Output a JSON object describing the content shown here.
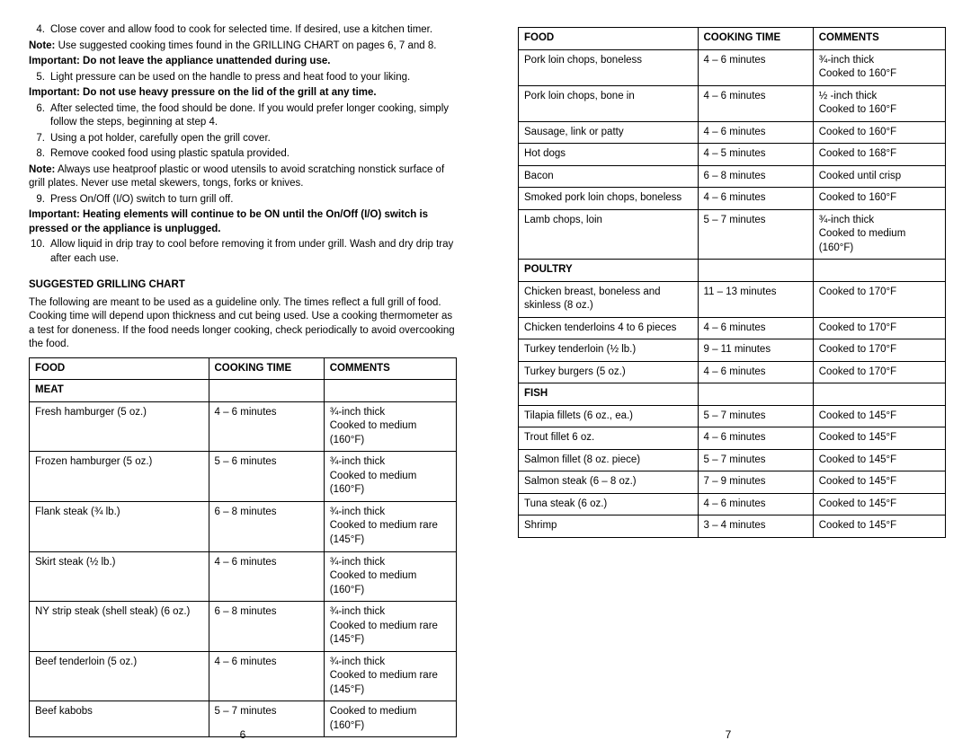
{
  "left": {
    "list1": [
      {
        "n": "4.",
        "t": "Close cover and allow food to cook for selected time. If desired, use a kitchen timer."
      }
    ],
    "note1_label": "Note:",
    "note1_text": " Use suggested cooking times found in the GRILLING CHART on pages 6, 7 and 8.",
    "imp1": "Important:  Do not leave the appliance unattended during use.",
    "list2": [
      {
        "n": "5.",
        "t": "Light pressure can be used on the handle to press and heat food to your liking."
      }
    ],
    "imp2": "Important: Do not use heavy pressure on the lid of the grill at any time.",
    "list3": [
      {
        "n": "6.",
        "t": "After selected time, the food should be done. If you would prefer longer cooking, simply follow the steps, beginning at step 4."
      },
      {
        "n": "7.",
        "t": "Using a pot holder, carefully open the grill cover."
      },
      {
        "n": "8.",
        "t": "Remove cooked food using plastic spatula provided."
      }
    ],
    "note2_label": "Note:",
    "note2_text": " Always use heatproof plastic or wood utensils to avoid scratching nonstick surface of grill plates. Never use metal skewers, tongs, forks or knives.",
    "list4": [
      {
        "n": "9.",
        "t": "Press On/Off (I/O) switch to turn grill off."
      }
    ],
    "imp3": "Important: Heating elements will continue to be ON until the On/Off (I/O) switch is pressed or the appliance is unplugged.",
    "list5": [
      {
        "n": "10.",
        "t": "Allow liquid in drip tray to cool before removing it from under grill. Wash and dry drip tray after each use."
      }
    ],
    "heading": "SUGGESTED GRILLING CHART",
    "intro": "The following are meant to be used as a guideline only. The times reflect a full grill of food. Cooking time will depend upon thickness and cut being used.  Use a cooking thermometer as a test for doneness. If the food needs longer cooking, check periodically to avoid overcooking the food.",
    "table": {
      "headers": [
        "Food",
        "Cooking Time",
        "Comments"
      ],
      "rows": [
        {
          "type": "sub",
          "cells": [
            "Meat",
            "",
            ""
          ]
        },
        {
          "type": "row",
          "cells": [
            "Fresh hamburger (5 oz.)",
            "4 – 6 minutes",
            "¾-inch thick\nCooked to medium (160°F)"
          ]
        },
        {
          "type": "row",
          "cells": [
            "Frozen hamburger (5 oz.)",
            "5 – 6 minutes",
            "¾-inch thick\nCooked to medium (160°F)"
          ]
        },
        {
          "type": "row",
          "cells": [
            "Flank steak (¾ lb.)",
            "6 – 8 minutes",
            "¾-inch thick\nCooked to medium rare (145°F)"
          ]
        },
        {
          "type": "row",
          "cells": [
            "Skirt steak (½ lb.)",
            "4 – 6 minutes",
            "¾-inch thick\nCooked to medium  (160°F)"
          ]
        },
        {
          "type": "row",
          "cells": [
            "NY strip steak (shell steak) (6 oz.)",
            "6 – 8 minutes",
            "¾-inch thick\nCooked to medium rare (145°F)"
          ]
        },
        {
          "type": "row",
          "cells": [
            "Beef tenderloin (5 oz.)",
            "4 – 6 minutes",
            "¾-inch thick\nCooked to medium rare (145°F)"
          ]
        },
        {
          "type": "row",
          "cells": [
            "Beef kabobs",
            "5 – 7 minutes",
            "Cooked to medium (160°F)"
          ]
        }
      ]
    },
    "pagenum": "6"
  },
  "right": {
    "table": {
      "headers": [
        "Food",
        "Cooking Time",
        "Comments"
      ],
      "rows": [
        {
          "type": "row",
          "cells": [
            "Pork loin chops, boneless",
            "4 – 6 minutes",
            "¾-inch thick\nCooked to 160°F"
          ]
        },
        {
          "type": "row",
          "cells": [
            "Pork loin chops, bone in",
            "4 – 6 minutes",
            "½ -inch thick\nCooked to 160°F"
          ]
        },
        {
          "type": "row",
          "cells": [
            "Sausage, link or patty",
            "4 – 6 minutes",
            "Cooked to 160°F"
          ]
        },
        {
          "type": "row",
          "cells": [
            "Hot dogs",
            "4 – 5 minutes",
            "Cooked to 168°F"
          ]
        },
        {
          "type": "row",
          "cells": [
            "Bacon",
            "6 – 8 minutes",
            "Cooked until crisp"
          ]
        },
        {
          "type": "row",
          "cells": [
            "Smoked pork loin chops, boneless",
            "4 – 6 minutes",
            "Cooked to 160°F"
          ]
        },
        {
          "type": "row",
          "cells": [
            "Lamb chops, loin",
            "5 – 7 minutes",
            "¾-inch thick\nCooked to medium (160°F)"
          ]
        },
        {
          "type": "sub",
          "cells": [
            "Poultry",
            "",
            ""
          ]
        },
        {
          "type": "row",
          "cells": [
            "Chicken breast, boneless and skinless (8 oz.)",
            "11 – 13 minutes",
            "Cooked to 170°F"
          ]
        },
        {
          "type": "row",
          "cells": [
            "Chicken tenderloins 4 to 6 pieces",
            "4 – 6 minutes",
            "Cooked to 170°F"
          ]
        },
        {
          "type": "row",
          "cells": [
            "Turkey tenderloin (½ lb.)",
            "9 – 11 minutes",
            "Cooked to 170°F"
          ]
        },
        {
          "type": "row",
          "cells": [
            "Turkey burgers (5 oz.)",
            "4 – 6 minutes",
            "Cooked to 170°F"
          ]
        },
        {
          "type": "sub",
          "cells": [
            "Fish",
            "",
            ""
          ]
        },
        {
          "type": "row",
          "cells": [
            "Tilapia fillets (6 oz., ea.)",
            "5 – 7 minutes",
            "Cooked to 145°F"
          ]
        },
        {
          "type": "row",
          "cells": [
            "Trout fillet 6 oz.",
            "4 – 6 minutes",
            "Cooked to 145°F"
          ]
        },
        {
          "type": "row",
          "cells": [
            "Salmon fillet (8 oz. piece)",
            "5 – 7 minutes",
            "Cooked to 145°F"
          ]
        },
        {
          "type": "row",
          "cells": [
            "Salmon steak (6 – 8 oz.)",
            "7 – 9 minutes",
            "Cooked to 145°F"
          ]
        },
        {
          "type": "row",
          "cells": [
            "Tuna steak (6 oz.)",
            "4 – 6 minutes",
            "Cooked to 145°F"
          ]
        },
        {
          "type": "row",
          "cells": [
            "Shrimp",
            "3 – 4 minutes",
            "Cooked to 145°F"
          ]
        }
      ]
    },
    "pagenum": "7"
  },
  "col_widths": [
    "42%",
    "27%",
    "31%"
  ]
}
